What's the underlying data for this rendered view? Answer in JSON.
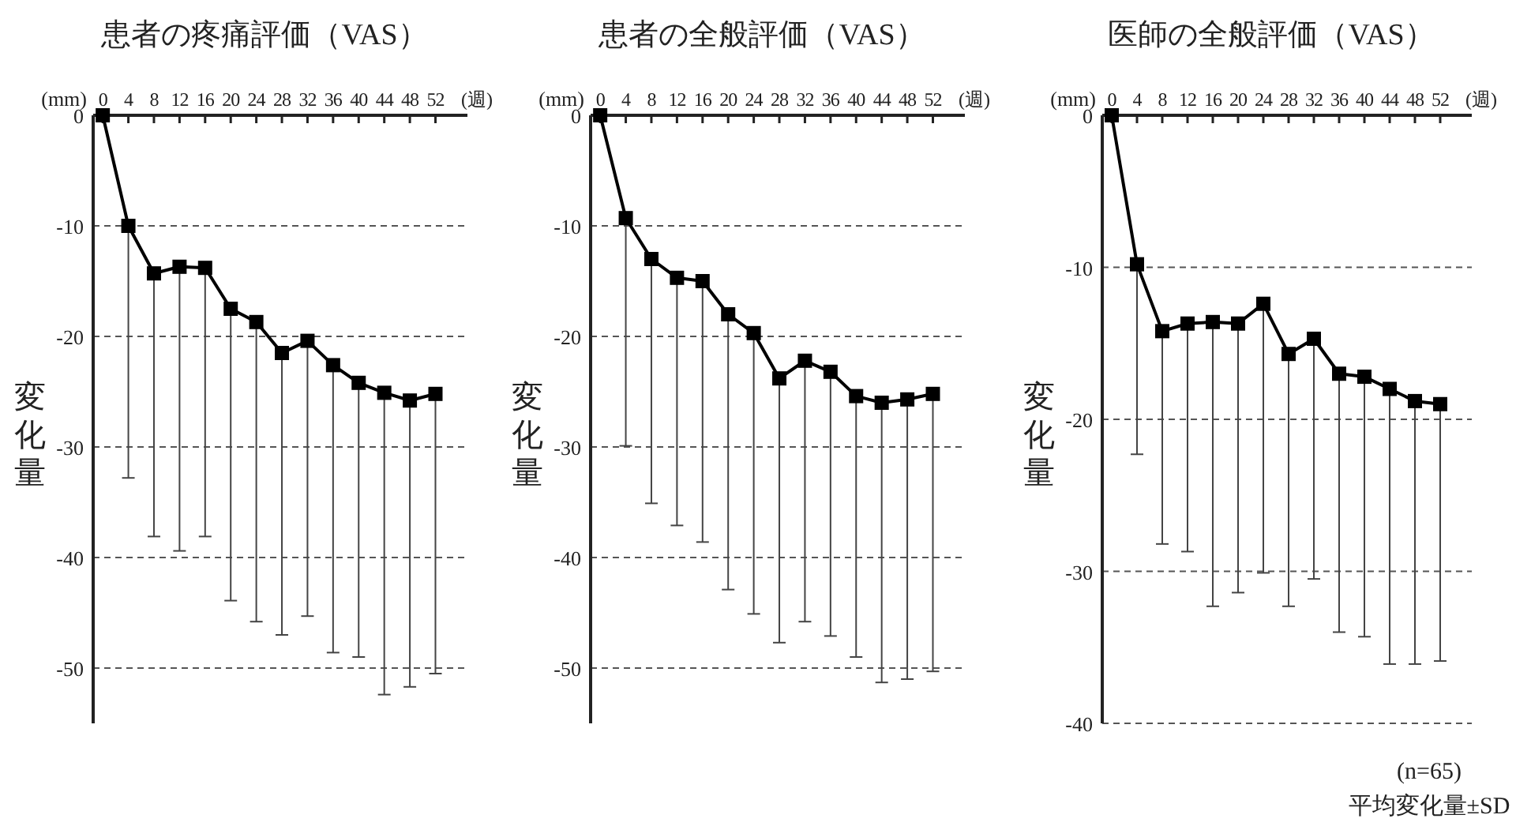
{
  "chart_data": [
    {
      "type": "line",
      "title": "患者の疼痛評価（VAS）",
      "ylabel": "変化量",
      "annotations": [
        "(mm)",
        "(週)"
      ],
      "x": [
        0,
        4,
        8,
        12,
        16,
        20,
        24,
        28,
        32,
        36,
        40,
        44,
        48,
        52
      ],
      "xlim": [
        -1.5,
        57
      ],
      "xticks": [
        0,
        4,
        8,
        12,
        16,
        20,
        24,
        28,
        32,
        36,
        40,
        44,
        48,
        52
      ],
      "ylim": [
        -55,
        0
      ],
      "yticks": [
        0,
        -10,
        -20,
        -30,
        -40,
        -50
      ],
      "grid": "y",
      "marker": "square",
      "line_style": "solid",
      "series": [
        {
          "color": "#000000",
          "values": [
            0,
            -10.0,
            -14.3,
            -13.7,
            -13.8,
            -17.5,
            -18.7,
            -21.5,
            -20.4,
            -22.6,
            -24.2,
            -25.1,
            -25.8,
            -25.2
          ],
          "errors": [
            null,
            [
              -32.8,
              -10.0
            ],
            [
              -38.1,
              -14.3
            ],
            [
              -39.4,
              -13.7
            ],
            [
              -38.1,
              -13.8
            ],
            [
              -43.9,
              -17.5
            ],
            [
              -45.8,
              -18.7
            ],
            [
              -47.0,
              -21.5
            ],
            [
              -45.3,
              -20.4
            ],
            [
              -48.6,
              -22.6
            ],
            [
              -49.0,
              -24.2
            ],
            [
              -52.4,
              -25.1
            ],
            [
              -51.7,
              -25.8
            ],
            [
              -50.5,
              -25.2
            ]
          ]
        }
      ]
    },
    {
      "type": "line",
      "title": "患者の全般評価（VAS）",
      "ylabel": "変化量",
      "annotations": [
        "(mm)",
        "(週)"
      ],
      "x": [
        0,
        4,
        8,
        12,
        16,
        20,
        24,
        28,
        32,
        36,
        40,
        44,
        48,
        52
      ],
      "xlim": [
        -1.5,
        57
      ],
      "xticks": [
        0,
        4,
        8,
        12,
        16,
        20,
        24,
        28,
        32,
        36,
        40,
        44,
        48,
        52
      ],
      "ylim": [
        -55,
        0
      ],
      "yticks": [
        0,
        -10,
        -20,
        -30,
        -40,
        -50
      ],
      "grid": "y",
      "marker": "square",
      "line_style": "solid",
      "series": [
        {
          "color": "#000000",
          "values": [
            0,
            -9.3,
            -13.0,
            -14.7,
            -15.0,
            -18.0,
            -19.7,
            -23.8,
            -22.2,
            -23.2,
            -25.4,
            -26.0,
            -25.7,
            -25.2
          ],
          "errors": [
            null,
            [
              -29.9,
              -9.3
            ],
            [
              -35.1,
              -13.0
            ],
            [
              -37.1,
              -14.7
            ],
            [
              -38.6,
              -15.0
            ],
            [
              -42.9,
              -18.0
            ],
            [
              -45.1,
              -19.7
            ],
            [
              -47.7,
              -23.8
            ],
            [
              -45.8,
              -22.2
            ],
            [
              -47.1,
              -23.2
            ],
            [
              -49.0,
              -25.4
            ],
            [
              -51.3,
              -26.0
            ],
            [
              -51.0,
              -25.7
            ],
            [
              -50.3,
              -25.2
            ]
          ]
        }
      ]
    },
    {
      "type": "line",
      "title": "医師の全般評価（VAS）",
      "ylabel": "変化量",
      "annotations": [
        "(mm)",
        "(週)",
        "(n=65)",
        "平均変化量±SD"
      ],
      "x": [
        0,
        4,
        8,
        12,
        16,
        20,
        24,
        28,
        32,
        36,
        40,
        44,
        48,
        52
      ],
      "xlim": [
        -1.5,
        57
      ],
      "xticks": [
        0,
        4,
        8,
        12,
        16,
        20,
        24,
        28,
        32,
        36,
        40,
        44,
        48,
        52
      ],
      "ylim": [
        -40,
        0
      ],
      "yticks": [
        0,
        -10,
        -20,
        -30,
        -40
      ],
      "grid": "y",
      "marker": "square",
      "line_style": "solid",
      "series": [
        {
          "color": "#000000",
          "values": [
            0,
            -9.8,
            -14.2,
            -13.7,
            -13.6,
            -13.7,
            -12.4,
            -15.7,
            -14.7,
            -17.0,
            -17.2,
            -18.0,
            -18.8,
            -19.0
          ],
          "errors": [
            null,
            [
              -22.3,
              -9.8
            ],
            [
              -28.2,
              -14.2
            ],
            [
              -28.7,
              -13.7
            ],
            [
              -32.3,
              -13.6
            ],
            [
              -31.4,
              -13.7
            ],
            [
              -30.1,
              -12.4
            ],
            [
              -32.3,
              -15.7
            ],
            [
              -30.5,
              -14.7
            ],
            [
              -34.0,
              -17.0
            ],
            [
              -34.3,
              -17.2
            ],
            [
              -36.1,
              -18.0
            ],
            [
              -36.1,
              -18.8
            ],
            [
              -35.9,
              -19.0
            ]
          ]
        }
      ]
    }
  ]
}
